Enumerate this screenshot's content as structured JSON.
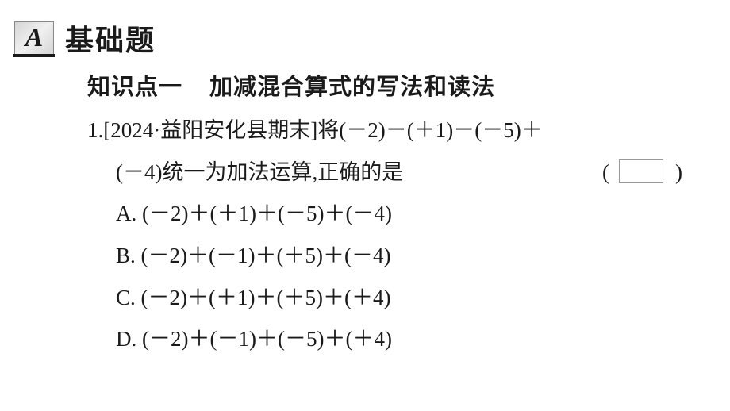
{
  "section": {
    "badge": "A",
    "title": "基础题"
  },
  "knowledge_point": {
    "label": "知识点一",
    "topic": "加减混合算式的写法和读法"
  },
  "question": {
    "number": "1.",
    "source": "[2024·益阳安化县期末]",
    "stem_part1": "将",
    "expr_line1": "(－2)－(＋1)－(－5)＋",
    "expr_line2": "(－4)",
    "stem_part2": "统一为加法运算,正确的是",
    "paren_open": "(",
    "paren_close": ")",
    "options": [
      {
        "label": "A.",
        "expr": "(－2)＋(＋1)＋(－5)＋(－4)"
      },
      {
        "label": "B.",
        "expr": "(－2)＋(－1)＋(＋5)＋(－4)"
      },
      {
        "label": "C.",
        "expr": "(－2)＋(＋1)＋(＋5)＋(＋4)"
      },
      {
        "label": "D.",
        "expr": "(－2)＋(－1)＋(－5)＋(＋4)"
      }
    ]
  },
  "colors": {
    "text": "#1a1a1a",
    "background": "#ffffff",
    "badge_gradient_start": "#d5d5d5",
    "badge_gradient_mid": "#f0f0f0",
    "box_border": "#999999"
  },
  "fonts": {
    "heading_family": "SimHei",
    "body_family": "SimSun",
    "math_family": "Times New Roman",
    "section_title_size_pt": 27,
    "kp_size_pt": 22,
    "body_size_pt": 20
  }
}
